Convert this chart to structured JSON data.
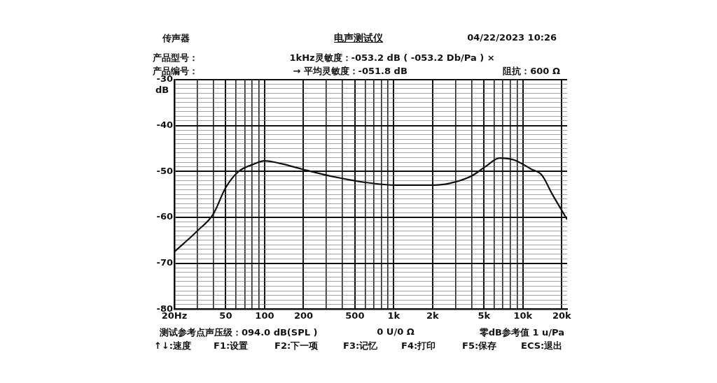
{
  "chart_data": {
    "type": "line",
    "title": "电声测试仪",
    "ylabel": "dB",
    "annotations": [
      "传声器",
      "04/22/2023  10:26",
      "产品型号：",
      "1kHz灵敏度：-053.2 dB ( -053.2 Db/Pa ) ×",
      "产品编号：",
      "→ 平均灵敏度：-051.8 dB",
      "阻抗：600 Ω",
      "测试参考点声压级：094.0 dB(SPL )",
      "0 U/0 Ω",
      "零dB参考值 1 u/Pa",
      "↑↓:速度",
      "F1:设置",
      "F2:下一项",
      "F3:记忆",
      "F4:打印",
      "F5:保存",
      "ECS:退出"
    ],
    "series": [
      {
        "color": "#111111",
        "x": [
          20,
          30,
          40,
          50,
          63,
          81,
          100,
          134,
          195,
          322,
          604,
          1060,
          1880,
          2700,
          4000,
          5100,
          6600,
          8500,
          11600,
          14000,
          16900,
          20000,
          22000
        ],
        "values": [
          -67.5,
          -63,
          -59.3,
          -53.5,
          -50,
          -48.5,
          -47.7,
          -48.3,
          -49.5,
          -51,
          -52.4,
          -53,
          -53,
          -52.6,
          -51,
          -49,
          -47.1,
          -47.5,
          -49.5,
          -50.8,
          -55,
          -58.5,
          -60.5
        ]
      }
    ],
    "xlim": [
      20,
      22000
    ],
    "xticks": [
      {
        "value": 20,
        "label": "20Hz"
      },
      {
        "value": 30,
        "label": null
      },
      {
        "value": 40,
        "label": null
      },
      50,
      {
        "value": 60,
        "label": null
      },
      {
        "value": 70,
        "label": null
      },
      {
        "value": 80,
        "label": null
      },
      {
        "value": 90,
        "label": null
      },
      100,
      200,
      {
        "value": 300,
        "label": null
      },
      {
        "value": 400,
        "label": null
      },
      500,
      {
        "value": 600,
        "label": null
      },
      {
        "value": 700,
        "label": null
      },
      {
        "value": 800,
        "label": null
      },
      {
        "value": 900,
        "label": null
      },
      {
        "value": 1000,
        "label": "1k"
      },
      {
        "value": 2000,
        "label": "2k"
      },
      {
        "value": 3000,
        "label": null
      },
      {
        "value": 4000,
        "label": null
      },
      {
        "value": 5000,
        "label": "5k"
      },
      {
        "value": 6000,
        "label": null
      },
      {
        "value": 7000,
        "label": null
      },
      {
        "value": 8000,
        "label": null
      },
      {
        "value": 9000,
        "label": null
      },
      {
        "value": 10000,
        "label": "10k"
      },
      {
        "value": 20000,
        "label": "20k"
      }
    ],
    "ylim": [
      -80,
      -30
    ],
    "yticks": [
      -80,
      {
        "value": -79,
        "label": null
      },
      {
        "value": -78,
        "label": null
      },
      {
        "value": -77,
        "label": null
      },
      {
        "value": -76,
        "label": null
      },
      {
        "value": -75,
        "label": null
      },
      {
        "value": -74,
        "label": null
      },
      {
        "value": -73,
        "label": null
      },
      {
        "value": -72,
        "label": null
      },
      {
        "value": -71,
        "label": null
      },
      -70,
      {
        "value": -69,
        "label": null
      },
      {
        "value": -68,
        "label": null
      },
      {
        "value": -67,
        "label": null
      },
      {
        "value": -66,
        "label": null
      },
      {
        "value": -65,
        "label": null
      },
      {
        "value": -64,
        "label": null
      },
      {
        "value": -63,
        "label": null
      },
      {
        "value": -62,
        "label": null
      },
      {
        "value": -61,
        "label": null
      },
      -60,
      {
        "value": -59,
        "label": null
      },
      {
        "value": -58,
        "label": null
      },
      {
        "value": -57,
        "label": null
      },
      {
        "value": -56,
        "label": null
      },
      {
        "value": -55,
        "label": null
      },
      {
        "value": -54,
        "label": null
      },
      {
        "value": -53,
        "label": null
      },
      {
        "value": -52,
        "label": null
      },
      {
        "value": -51,
        "label": null
      },
      -50,
      {
        "value": -49,
        "label": null
      },
      {
        "value": -48,
        "label": null
      },
      {
        "value": -47,
        "label": null
      },
      {
        "value": -46,
        "label": null
      },
      {
        "value": -45,
        "label": null
      },
      {
        "value": -44,
        "label": null
      },
      {
        "value": -43,
        "label": null
      },
      {
        "value": -42,
        "label": null
      },
      {
        "value": -41,
        "label": null
      },
      -40,
      {
        "value": -39,
        "label": null
      },
      {
        "value": -38,
        "label": null
      },
      {
        "value": -37,
        "label": null
      },
      {
        "value": -36,
        "label": null
      },
      {
        "value": -35,
        "label": null
      },
      {
        "value": -34,
        "label": null
      },
      {
        "value": -33,
        "label": null
      },
      {
        "value": -32,
        "label": null
      },
      {
        "value": -31,
        "label": null
      },
      -30
    ],
    "log": "x",
    "grid": true,
    "legend": false,
    "marker": "none",
    "line_style": "solid"
  }
}
